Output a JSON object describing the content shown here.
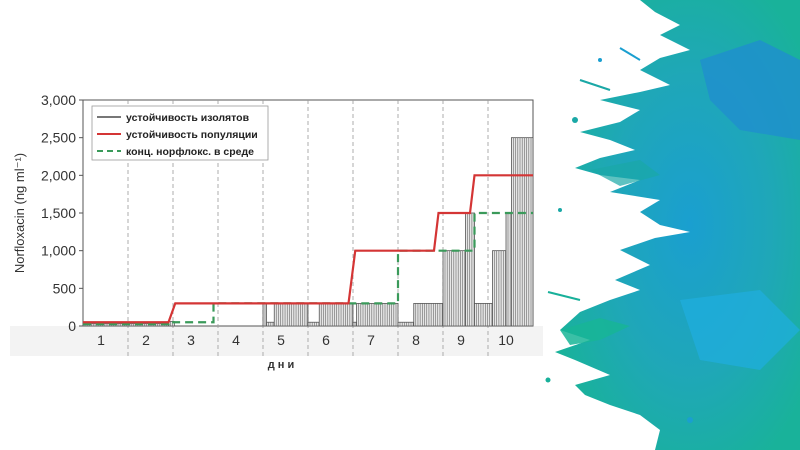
{
  "chart_data": {
    "type": "line",
    "ylabel": "Norfloxacin (ng ml⁻¹)",
    "xlabel": "д н и",
    "xlim": [
      0,
      10
    ],
    "ylim": [
      0,
      3000
    ],
    "yticks": [
      0,
      500,
      1000,
      1500,
      2000,
      2500,
      3000
    ],
    "ytick_labels": [
      "0",
      "500",
      "1,000",
      "1,500",
      "2,000",
      "2,500",
      "3,000"
    ],
    "day_labels": [
      "1",
      "2",
      "3",
      "4",
      "5",
      "6",
      "7",
      "8",
      "9",
      "10"
    ],
    "grid": "vertical dashed at day boundaries",
    "legend_position": "top-left",
    "series": [
      {
        "name": "устойчивость изолятов",
        "style": "bars",
        "color": "#555555",
        "bars": [
          {
            "x0": 0.0,
            "x1": 1.9,
            "y": 30
          },
          {
            "x0": 1.9,
            "x1": 2.03,
            "y": 60
          },
          {
            "x0": 4.0,
            "x1": 4.08,
            "y": 300
          },
          {
            "x0": 4.08,
            "x1": 4.25,
            "y": 50
          },
          {
            "x0": 4.25,
            "x1": 5.0,
            "y": 300
          },
          {
            "x0": 5.0,
            "x1": 5.25,
            "y": 50
          },
          {
            "x0": 5.25,
            "x1": 6.0,
            "y": 300
          },
          {
            "x0": 6.0,
            "x1": 6.08,
            "y": 50
          },
          {
            "x0": 6.08,
            "x1": 7.0,
            "y": 300
          },
          {
            "x0": 7.0,
            "x1": 7.35,
            "y": 50
          },
          {
            "x0": 7.35,
            "x1": 8.0,
            "y": 300
          },
          {
            "x0": 8.0,
            "x1": 8.5,
            "y": 1000
          },
          {
            "x0": 8.5,
            "x1": 8.7,
            "y": 1500
          },
          {
            "x0": 8.7,
            "x1": 9.1,
            "y": 300
          },
          {
            "x0": 9.1,
            "x1": 9.4,
            "y": 1000
          },
          {
            "x0": 9.4,
            "x1": 9.52,
            "y": 1500
          },
          {
            "x0": 9.52,
            "x1": 10.0,
            "y": 2500
          }
        ]
      },
      {
        "name": "устойчивость популяции",
        "style": "step-line",
        "color": "#d43535",
        "points": [
          [
            0,
            50
          ],
          [
            1.9,
            50
          ],
          [
            2.05,
            300
          ],
          [
            5.9,
            300
          ],
          [
            6.05,
            1000
          ],
          [
            7.8,
            1000
          ],
          [
            7.9,
            1500
          ],
          [
            8.6,
            1500
          ],
          [
            8.7,
            2000
          ],
          [
            10,
            2000
          ]
        ]
      },
      {
        "name": "конц. норфлокс. в среде",
        "style": "dashed-step-line",
        "color": "#3a9a5a",
        "points": [
          [
            0,
            25
          ],
          [
            1.9,
            25
          ],
          [
            1.9,
            50
          ],
          [
            2.9,
            50
          ],
          [
            2.9,
            300
          ],
          [
            7.0,
            300
          ],
          [
            7.0,
            1000
          ],
          [
            8.7,
            1000
          ],
          [
            8.7,
            1500
          ],
          [
            10,
            1500
          ]
        ]
      }
    ]
  }
}
